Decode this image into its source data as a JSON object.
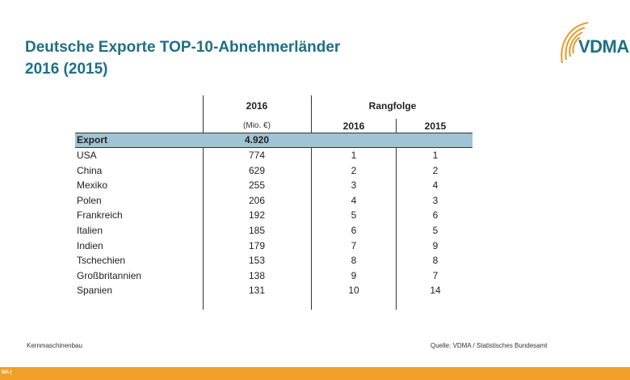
{
  "title": {
    "line1": "Deutsche Exporte TOP-10-Abnehmerländer",
    "line2": "2016 (2015)"
  },
  "logo": {
    "text": "VDMA",
    "icon": "vdma-arc-logo-icon",
    "color": "#e89a2a"
  },
  "table": {
    "col_value_header": "2016",
    "col_value_unit": "(Mio. €)",
    "rank_header": "Rangfolge",
    "rank_2016_header": "2016",
    "rank_2015_header": "2015",
    "highlight_color": "#9fc4d4",
    "export_row": {
      "label": "Export",
      "value": "4.920"
    },
    "rows": [
      {
        "country": "USA",
        "value": "774",
        "rank_2016": "1",
        "rank_2015": "1"
      },
      {
        "country": "China",
        "value": "629",
        "rank_2016": "2",
        "rank_2015": "2"
      },
      {
        "country": "Mexiko",
        "value": "255",
        "rank_2016": "3",
        "rank_2015": "4"
      },
      {
        "country": "Polen",
        "value": "206",
        "rank_2016": "4",
        "rank_2015": "3"
      },
      {
        "country": "Frankreich",
        "value": "192",
        "rank_2016": "5",
        "rank_2015": "6"
      },
      {
        "country": "Italien",
        "value": "185",
        "rank_2016": "6",
        "rank_2015": "5"
      },
      {
        "country": "Indien",
        "value": "179",
        "rank_2016": "7",
        "rank_2015": "9"
      },
      {
        "country": "Tschechien",
        "value": "153",
        "rank_2016": "8",
        "rank_2015": "8"
      },
      {
        "country": "Großbritannien",
        "value": "138",
        "rank_2016": "9",
        "rank_2015": "7"
      },
      {
        "country": "Spanien",
        "value": "131",
        "rank_2016": "10",
        "rank_2015": "14"
      }
    ]
  },
  "footer": {
    "left": "Kernmaschinenbau",
    "right": "Quelle: VDMA / Statistisches Bundesamt",
    "bar_text": "MA |",
    "bar_color": "#f0a028"
  }
}
